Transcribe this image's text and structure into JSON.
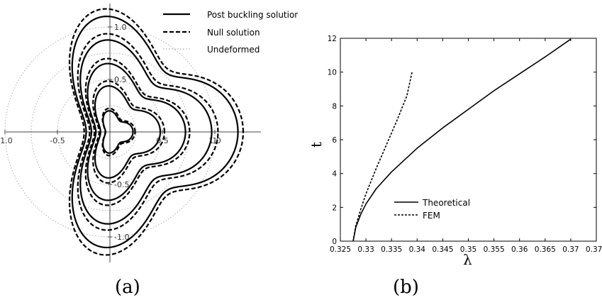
{
  "captions": {
    "a": "(a)",
    "b": "(b)"
  },
  "chart_data": [
    {
      "type": "line",
      "panel": "(a)",
      "legend_position": "top-right",
      "legend": [
        "Post buckling solution",
        "Null solution",
        "Undeformed"
      ],
      "x_ticks": [
        "-1.0",
        "-0.5",
        "0.5",
        "1",
        "1.0"
      ],
      "y_ticks": [
        "1.0",
        "0.5",
        "-0.5",
        "-1.0"
      ],
      "x_tick_values": [
        -1.0,
        -0.5,
        0.5,
        1.0,
        1.0
      ],
      "y_tick_values": [
        1.0,
        0.5,
        -0.5,
        -1.0
      ],
      "xlim": [
        -1.1,
        1.2
      ],
      "ylim": [
        -1.3,
        1.3
      ],
      "grid": false,
      "undeformed_radii": [
        0.25,
        0.5,
        0.75,
        1.0
      ],
      "shape": {
        "symmetry": 3,
        "amplitude_ratio": 0.3
      },
      "series": [
        {
          "name": "Post buckling solution",
          "style": "solid",
          "color": "#000000",
          "x_extent": [
            -0.12,
            0.22
          ],
          "y_extent": [
            -0.17,
            0.17
          ]
        },
        {
          "name": "Post buckling solution",
          "style": "solid",
          "color": "#000000",
          "x_extent": [
            -0.26,
            0.48
          ],
          "y_extent": [
            -0.37,
            0.37
          ]
        },
        {
          "name": "Post buckling solution",
          "style": "solid",
          "color": "#000000",
          "x_extent": [
            -0.39,
            0.72
          ],
          "y_extent": [
            -0.55,
            0.55
          ]
        },
        {
          "name": "Post buckling solution",
          "style": "solid",
          "color": "#000000",
          "x_extent": [
            -0.52,
            0.97
          ],
          "y_extent": [
            -0.74,
            0.74
          ]
        },
        {
          "name": "Post buckling solution",
          "style": "solid",
          "color": "#000000",
          "x_extent": [
            -0.66,
            1.22
          ],
          "y_extent": [
            -0.93,
            0.93
          ]
        },
        {
          "name": "Null solution",
          "style": "dashed",
          "color": "#000000",
          "x_extent": [
            -0.13,
            0.24
          ],
          "y_extent": [
            -0.19,
            0.19
          ]
        },
        {
          "name": "Null solution",
          "style": "dashed",
          "color": "#000000",
          "x_extent": [
            -0.29,
            0.52
          ],
          "y_extent": [
            -0.41,
            0.41
          ]
        },
        {
          "name": "Null solution",
          "style": "dashed",
          "color": "#000000",
          "x_extent": [
            -0.42,
            0.76
          ],
          "y_extent": [
            -0.59,
            0.59
          ]
        },
        {
          "name": "Null solution",
          "style": "dashed",
          "color": "#000000",
          "x_extent": [
            -0.56,
            1.03
          ],
          "y_extent": [
            -0.79,
            0.79
          ]
        },
        {
          "name": "Null solution",
          "style": "dashed",
          "color": "#000000",
          "x_extent": [
            -0.7,
            1.27
          ],
          "y_extent": [
            -0.99,
            0.99
          ]
        }
      ]
    },
    {
      "type": "line",
      "panel": "(b)",
      "xlabel": "λ",
      "ylabel": "t",
      "xlim": [
        0.325,
        0.375
      ],
      "ylim": [
        0,
        12
      ],
      "x_ticks": [
        "0.325",
        "0.33",
        "0.335",
        "0.34",
        "0.345",
        "0.35",
        "0.355",
        "0.36",
        "0.365",
        "0.37",
        "0.375"
      ],
      "y_ticks": [
        "0",
        "2",
        "4",
        "6",
        "8",
        "10",
        "12"
      ],
      "grid": false,
      "legend_position": "lower-center",
      "series": [
        {
          "name": "Theoretical",
          "style": "solid",
          "color": "#000000",
          "x": [
            0.3275,
            0.328,
            0.329,
            0.33,
            0.332,
            0.335,
            0.34,
            0.345,
            0.35,
            0.355,
            0.36,
            0.365,
            0.37
          ],
          "y": [
            0.0,
            0.8,
            1.6,
            2.2,
            3.1,
            4.1,
            5.5,
            6.7,
            7.8,
            8.9,
            9.9,
            10.9,
            11.95
          ]
        },
        {
          "name": "FEM",
          "style": "dashed",
          "color": "#000000",
          "x": [
            0.3275,
            0.328,
            0.329,
            0.33,
            0.332,
            0.334,
            0.336,
            0.338,
            0.339
          ],
          "y": [
            0.0,
            0.9,
            1.9,
            2.8,
            4.3,
            5.7,
            7.1,
            8.6,
            10.0
          ]
        }
      ]
    }
  ]
}
